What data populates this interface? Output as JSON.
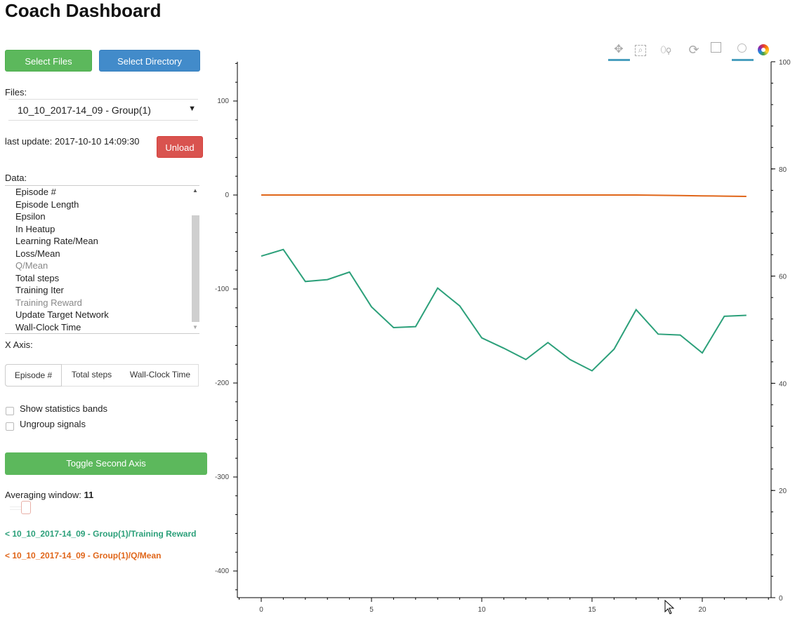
{
  "title": "Coach Dashboard",
  "buttons": {
    "select_files": "Select Files",
    "select_directory": "Select Directory",
    "unload": "Unload",
    "toggle_second_axis": "Toggle Second Axis"
  },
  "files": {
    "label": "Files:",
    "selected": "10_10_2017-14_09 - Group(1)"
  },
  "last_update": "last update: 2017-10-10 14:09:30",
  "data": {
    "label": "Data:",
    "items": [
      {
        "label": "Episode #",
        "selected": false
      },
      {
        "label": "Episode Length",
        "selected": false
      },
      {
        "label": "Epsilon",
        "selected": false
      },
      {
        "label": "In Heatup",
        "selected": false
      },
      {
        "label": "Learning Rate/Mean",
        "selected": false
      },
      {
        "label": "Loss/Mean",
        "selected": false
      },
      {
        "label": "Q/Mean",
        "selected": true
      },
      {
        "label": "Total steps",
        "selected": false
      },
      {
        "label": "Training Iter",
        "selected": false
      },
      {
        "label": "Training Reward",
        "selected": true
      },
      {
        "label": "Update Target Network",
        "selected": false
      },
      {
        "label": "Wall-Clock Time",
        "selected": false
      }
    ]
  },
  "x_axis": {
    "label": "X Axis:",
    "tabs": [
      "Episode #",
      "Total steps",
      "Wall-Clock Time"
    ],
    "active": "Episode #"
  },
  "checkboxes": [
    {
      "label": "Show statistics bands",
      "checked": false
    },
    {
      "label": "Ungroup signals",
      "checked": false
    }
  ],
  "averaging": {
    "label": "Averaging window:",
    "value": "11"
  },
  "legend": [
    {
      "label": "< 10_10_2017-14_09 - Group(1)/Training Reward",
      "color": "#2ca07a"
    },
    {
      "label": "< 10_10_2017-14_09 - Group(1)/Q/Mean",
      "color": "#e0661a"
    }
  ],
  "toolbar": [
    "pan-icon",
    "box-zoom-icon",
    "wheel-zoom-icon",
    "reset-icon",
    "save-icon",
    "hover-icon",
    "bokeh-logo-icon"
  ],
  "colors": {
    "green_button": "#5cb85c",
    "blue_button": "#428bca",
    "red_button": "#d9534f",
    "active_tool": "#4a9fbf"
  },
  "chart_data": {
    "type": "line",
    "x": [
      0,
      1,
      2,
      3,
      4,
      5,
      6,
      7,
      8,
      9,
      10,
      11,
      12,
      13,
      14,
      15,
      16,
      17,
      18,
      19,
      20,
      21,
      22
    ],
    "series": [
      {
        "name": "< 10_10_2017-14_09 - Group(1)/Training Reward",
        "color": "#2ca07a",
        "axis": "left",
        "values": [
          -65,
          -58,
          -92,
          -90,
          -82,
          -119,
          -141,
          -140,
          -99,
          -118,
          -152,
          -163,
          -175,
          -157,
          -175,
          -187,
          -164,
          -122,
          -148,
          -149,
          -168,
          -129,
          -128
        ]
      },
      {
        "name": "< 10_10_2017-14_09 - Group(1)/Q/Mean",
        "color": "#e0661a",
        "axis": "left",
        "values": [
          0,
          0,
          0,
          0,
          0,
          0,
          0,
          0,
          0,
          0,
          0,
          0,
          0,
          0,
          0,
          0,
          0,
          0,
          -0.3,
          -0.6,
          -0.9,
          -1.2,
          -1.5
        ]
      }
    ],
    "x_ticks": [
      0,
      5,
      10,
      15,
      20
    ],
    "y_ticks": [
      100,
      0,
      -100,
      -200,
      -300,
      -400
    ],
    "y2_ticks": [
      0,
      20,
      40,
      60,
      80,
      100
    ],
    "xlim": [
      -1,
      23
    ],
    "ylim": [
      -430,
      140
    ],
    "y2lim": [
      0,
      100
    ],
    "grid": false
  }
}
